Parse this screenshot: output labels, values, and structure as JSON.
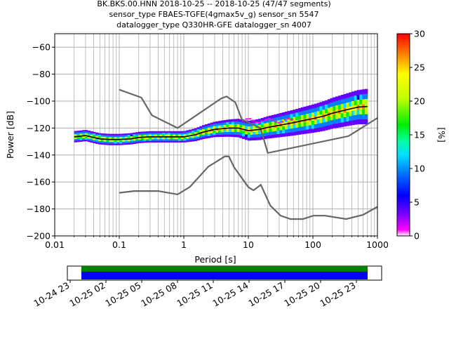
{
  "chart_data": {
    "type": "heatmap",
    "title_lines": [
      "BK.BKS.00.HNN   2018-10-25 -- 2018-10-25  (47/47 segments)",
      "sensor_type FBAES-TGFE(4gmax5v_g) sensor_sn 5547",
      "datalogger_type Q330HR-GFE datalogger_sn 4007"
    ],
    "xlabel": "Period [s]",
    "ylabel": "Power [dB]",
    "x_scale": "log",
    "xlim": [
      0.01,
      1000
    ],
    "ylim": [
      -200,
      -50
    ],
    "x_ticks": [
      {
        "v": 0.01,
        "label": "0.01"
      },
      {
        "v": 0.1,
        "label": "0.1"
      },
      {
        "v": 1,
        "label": "1"
      },
      {
        "v": 10,
        "label": "10"
      },
      {
        "v": 100,
        "label": "100"
      },
      {
        "v": 1000,
        "label": "1000"
      }
    ],
    "y_ticks": [
      {
        "v": -60,
        "label": "−60"
      },
      {
        "v": -80,
        "label": "−80"
      },
      {
        "v": -100,
        "label": "−100"
      },
      {
        "v": -120,
        "label": "−120"
      },
      {
        "v": -140,
        "label": "−140"
      },
      {
        "v": -160,
        "label": "−160"
      },
      {
        "v": -180,
        "label": "−180"
      },
      {
        "v": -200,
        "label": "−200"
      }
    ],
    "grid": true,
    "grid_color": "#b0b0b0",
    "nhnm": {
      "x": [
        0.1,
        0.22,
        0.32,
        0.8,
        3.8,
        4.6,
        6.3,
        7.9,
        15.4,
        20,
        354.8,
        1000
      ],
      "y": [
        -91.5,
        -97.4,
        -110.5,
        -120,
        -98,
        -96.5,
        -101,
        -113.5,
        -120,
        -138.5,
        -126,
        -112.5
      ]
    },
    "nlnm": {
      "x": [
        0.1,
        0.17,
        0.4,
        0.8,
        1.24,
        2.4,
        4.3,
        5,
        6,
        10,
        12,
        15.6,
        21.9,
        31.6,
        45,
        70,
        101,
        154,
        328,
        600,
        1000
      ],
      "y": [
        -168,
        -166.7,
        -166.7,
        -169.2,
        -163.7,
        -148.6,
        -141.1,
        -141.1,
        -149,
        -163.8,
        -166.2,
        -162.1,
        -177.5,
        -185,
        -187.5,
        -187.5,
        -185,
        -185,
        -187.5,
        -184.4,
        -178.4
      ]
    },
    "mode_line": {
      "x": [
        0.02,
        0.025,
        0.03,
        0.04,
        0.05,
        0.07,
        0.1,
        0.15,
        0.2,
        0.3,
        0.5,
        0.7,
        1,
        1.5,
        2,
        3,
        5,
        7,
        10,
        15,
        20,
        30,
        50,
        70,
        100,
        150,
        200,
        300,
        400,
        500,
        700
      ],
      "y": [
        -126.5,
        -126,
        -125.5,
        -127,
        -128,
        -128.5,
        -128.5,
        -128,
        -127,
        -126.5,
        -126.5,
        -126.5,
        -126.5,
        -125,
        -123,
        -121,
        -120,
        -120,
        -122,
        -121,
        -119.5,
        -118,
        -116,
        -114.5,
        -113,
        -111,
        -109,
        -107,
        -105.5,
        -104.5,
        -104
      ]
    },
    "colorbar": {
      "label": "[%]",
      "min": 0,
      "max": 30,
      "ticks": [
        {
          "v": 0,
          "label": "0"
        },
        {
          "v": 5,
          "label": "5"
        },
        {
          "v": 10,
          "label": "10"
        },
        {
          "v": 15,
          "label": "15"
        },
        {
          "v": 20,
          "label": "20"
        },
        {
          "v": 25,
          "label": "25"
        },
        {
          "v": 30,
          "label": "30"
        }
      ]
    },
    "coverage": {
      "ticks": [
        {
          "label": "10-24 23"
        },
        {
          "label": "10-25 02"
        },
        {
          "label": "10-25 05"
        },
        {
          "label": "10-25 08"
        },
        {
          "label": "10-25 11"
        },
        {
          "label": "10-25 14"
        },
        {
          "label": "10-25 17"
        },
        {
          "label": "10-25 20"
        },
        {
          "label": "10-25 23"
        }
      ],
      "data_color": "#0000ff",
      "gap_free_color": "#008000"
    }
  }
}
